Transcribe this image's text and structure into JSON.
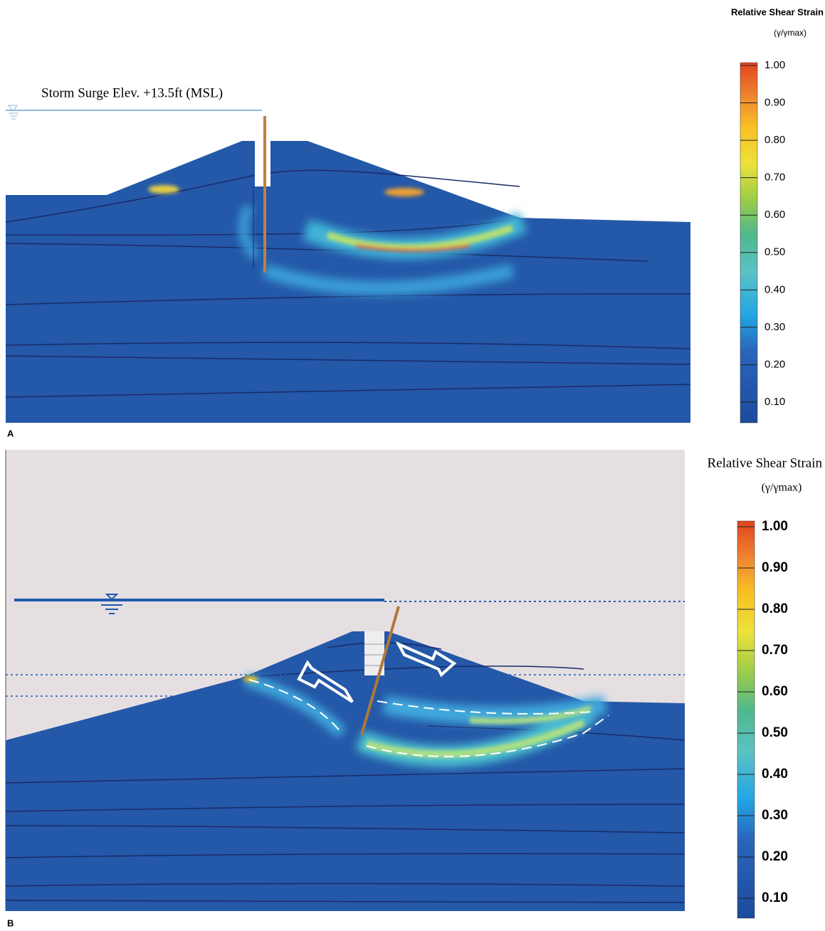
{
  "panels": [
    {
      "label": "A",
      "annotation": "Storm Surge Elev. +13.5ft (MSL)",
      "legend": {
        "title": "Relative Shear Strain",
        "unit": "(γ/γmax)",
        "ticks": [
          {
            "value": 1,
            "label": "1.00"
          },
          {
            "value": 0.9,
            "label": "0.90"
          },
          {
            "value": 0.8,
            "label": "0.80"
          },
          {
            "value": 0.7,
            "label": "0.70"
          },
          {
            "value": 0.6,
            "label": "0.60"
          },
          {
            "value": 0.5,
            "label": "0.50"
          },
          {
            "value": 0.4,
            "label": "0.40"
          },
          {
            "value": 0.3,
            "label": "0.30"
          },
          {
            "value": 0.2,
            "label": "0.20"
          },
          {
            "value": 0.1,
            "label": "0.10"
          }
        ]
      }
    },
    {
      "label": "B",
      "legend": {
        "title": "Relative Shear Strain",
        "unit": "(γ/γmax)",
        "ticks": [
          {
            "value": 1,
            "label": "1.00"
          },
          {
            "value": 0.9,
            "label": "0.90"
          },
          {
            "value": 0.8,
            "label": "0.80"
          },
          {
            "value": 0.7,
            "label": "0.70"
          },
          {
            "value": 0.6,
            "label": "0.60"
          },
          {
            "value": 0.5,
            "label": "0.50"
          },
          {
            "value": 0.4,
            "label": "0.40"
          },
          {
            "value": 0.3,
            "label": "0.30"
          },
          {
            "value": 0.2,
            "label": "0.20"
          },
          {
            "value": 0.1,
            "label": "0.10"
          }
        ]
      }
    }
  ]
}
